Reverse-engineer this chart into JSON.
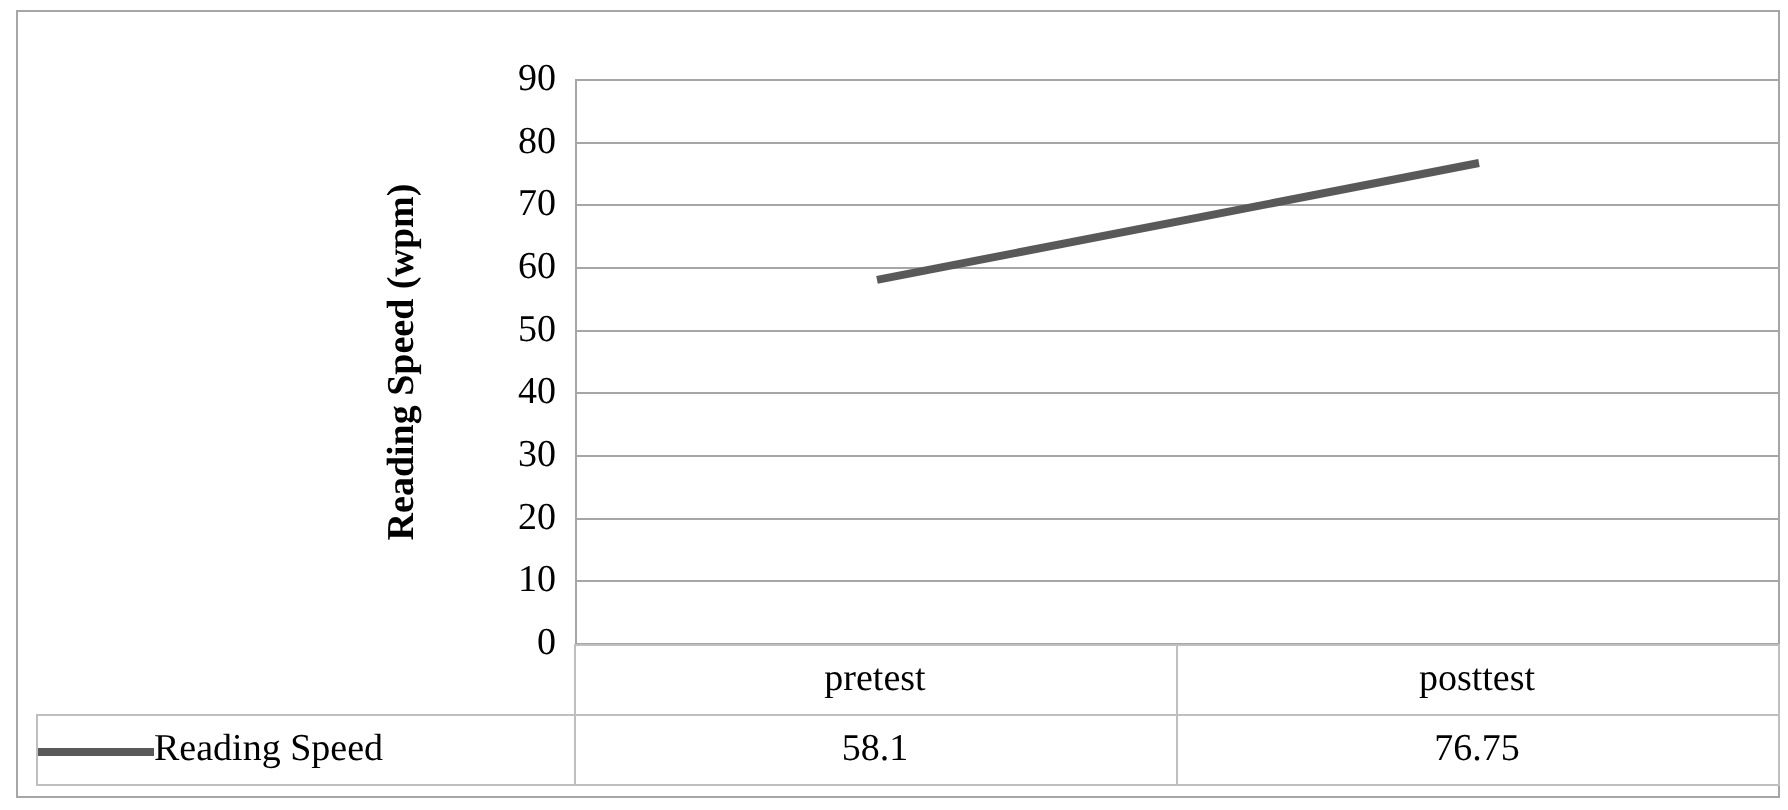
{
  "chart_data": {
    "type": "line",
    "ylabel": "Reading Speed (wpm)",
    "categories": [
      "pretest",
      "posttest"
    ],
    "series": [
      {
        "name": "Reading Speed",
        "color": "#595959",
        "values": [
          58.1,
          76.75
        ]
      }
    ],
    "ylim": [
      0,
      90
    ],
    "yticks": [
      0,
      10,
      20,
      30,
      40,
      50,
      60,
      70,
      80,
      90
    ],
    "grid": "y",
    "legend": "bottom",
    "data_labels": true,
    "marker": "none",
    "line_style": "solid"
  }
}
